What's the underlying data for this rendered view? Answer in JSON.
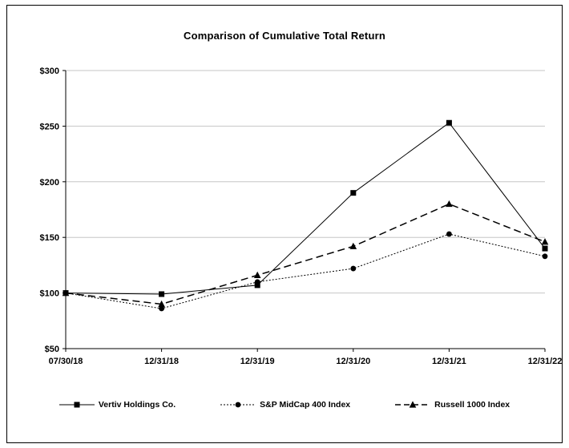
{
  "title": "Comparison of Cumulative Total Return",
  "chart_data": {
    "type": "line",
    "title": "Comparison of Cumulative Total Return",
    "x": [
      "07/30/18",
      "12/31/18",
      "12/31/19",
      "12/31/20",
      "12/31/21",
      "12/31/22"
    ],
    "series": [
      {
        "name": "Vertiv Holdings Co.",
        "marker": "square",
        "dash": "solid",
        "values": [
          100,
          99,
          107,
          190,
          253,
          140
        ]
      },
      {
        "name": "S&P MidCap 400 Index",
        "marker": "circle",
        "dash": "dotted",
        "values": [
          100,
          86,
          110,
          122,
          153,
          133
        ]
      },
      {
        "name": "Russell 1000 Index",
        "marker": "triangle",
        "dash": "dashed",
        "values": [
          100,
          90,
          116,
          142,
          180,
          146
        ]
      }
    ],
    "ylim": [
      50,
      300
    ],
    "ytick_step": 50,
    "ytick_prefix": "$",
    "yticks": [
      "$50",
      "$100",
      "$150",
      "$200",
      "$250",
      "$300"
    ],
    "grid": true,
    "legend_position": "bottom",
    "color": "#000000",
    "grid_color": "#c6c6c6"
  }
}
